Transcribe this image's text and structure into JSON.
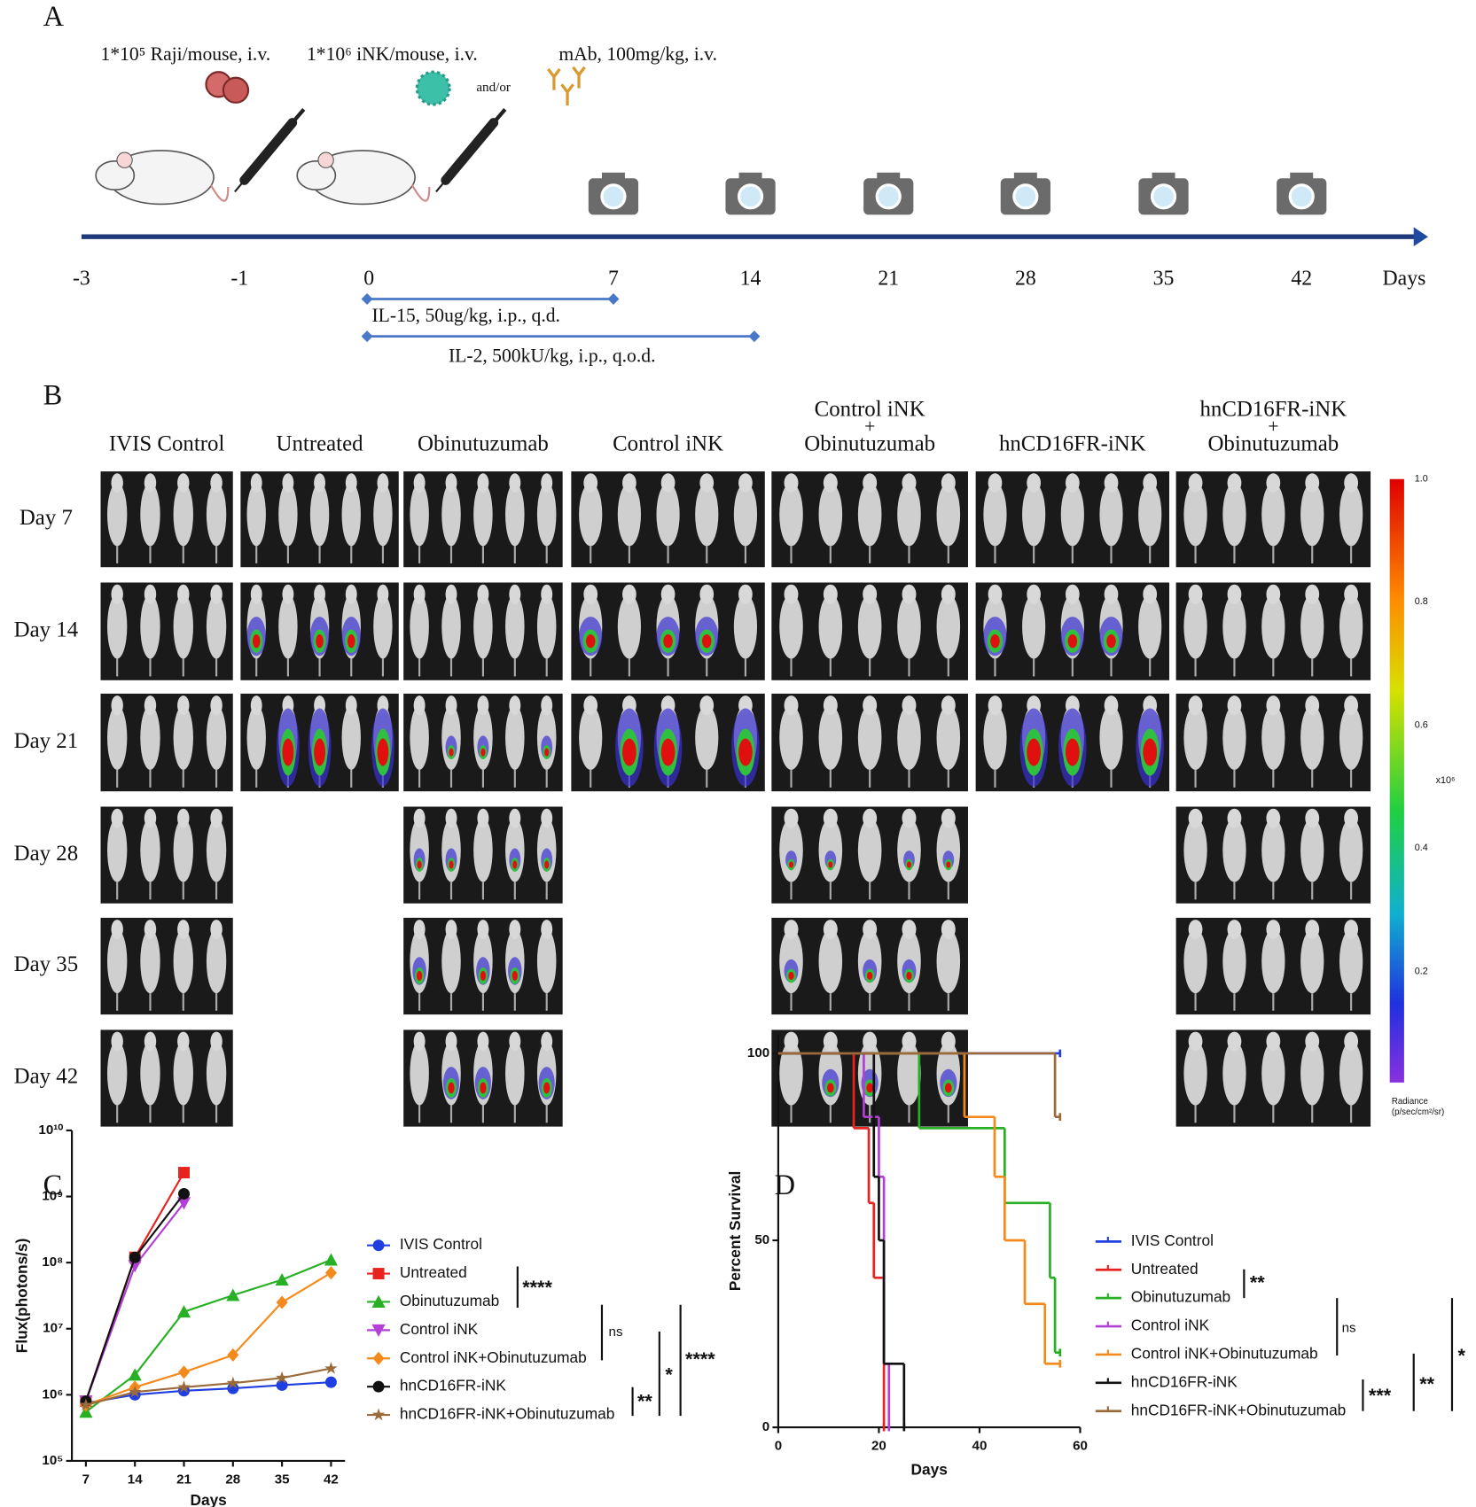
{
  "panel_a": {
    "label": "A",
    "injections": [
      "1*10⁵ Raji/mouse, i.v.",
      "1*10⁶  iNK/mouse, i.v.",
      "mAb, 100mg/kg, i.v."
    ],
    "and_or": "and/or",
    "timeline": {
      "ticks": [
        "-3",
        "-1",
        "0",
        "7",
        "14",
        "21",
        "28",
        "35",
        "42"
      ],
      "unit": "Days"
    },
    "treatments": [
      "IL-15, 50ug/kg, i.p., q.d.",
      "IL-2, 500kU/kg, i.p., q.o.d."
    ]
  },
  "panel_b": {
    "label": "B",
    "columns": [
      [
        "IVIS Control"
      ],
      [
        "Untreated"
      ],
      [
        "Obinutuzumab"
      ],
      [
        "Control iNK"
      ],
      [
        "Control iNK",
        "+",
        "Obinutuzumab"
      ],
      [
        "hnCD16FR-iNK"
      ],
      [
        "hnCD16FR-iNK",
        "+",
        "Obinutuzumab"
      ]
    ],
    "rows": [
      "Day 7",
      "Day 14",
      "Day 21",
      "Day 28",
      "Day 35",
      "Day 42"
    ],
    "colorbar": {
      "ticks": [
        "1.0",
        "0.8",
        "0.6",
        "0.4",
        "0.2"
      ],
      "scale": "x10⁶",
      "unit": [
        "Radiance",
        "(p/sec/cm²/sr)"
      ]
    }
  },
  "chart_data": [
    {
      "type": "line",
      "label": "C",
      "xlabel": "Days",
      "ylabel": "Flux(photons/s)",
      "log_y": true,
      "x": [
        7,
        14,
        21,
        28,
        35,
        42
      ],
      "xlim": [
        5,
        44
      ],
      "xticks": [
        7,
        14,
        21,
        28,
        35,
        42
      ],
      "ylim": [
        100000,
        10000000000
      ],
      "yticks": [
        {
          "value": 100000,
          "label": "10⁵"
        },
        {
          "value": 1000000,
          "label": "10⁶"
        },
        {
          "value": 10000000,
          "label": "10⁷"
        },
        {
          "value": 100000000,
          "label": "10⁸"
        },
        {
          "value": 1000000000,
          "label": "10⁹"
        },
        {
          "value": 10000000000,
          "label": "10¹⁰"
        }
      ],
      "series": [
        {
          "name": "IVIS Control",
          "color": "#1f3fe0",
          "marker": "circle",
          "values": [
            750000,
            1000000,
            1150000,
            1250000,
            1400000,
            1550000
          ]
        },
        {
          "name": "Untreated",
          "color": "#e8231f",
          "marker": "square",
          "values": [
            800000,
            120000000,
            2300000000,
            null,
            null,
            null
          ]
        },
        {
          "name": "Obinutuzumab",
          "color": "#27b024",
          "marker": "triangle-up",
          "values": [
            550000,
            2000000,
            18000000,
            32000000,
            55000000,
            110000000
          ]
        },
        {
          "name": "Control iNK",
          "color": "#b23fd6",
          "marker": "triangle-down",
          "values": [
            800000,
            90000000,
            800000000,
            null,
            null,
            null
          ]
        },
        {
          "name": "Control iNK+Obinutuzumab",
          "color": "#f48a1c",
          "marker": "diamond",
          "values": [
            700000,
            1300000,
            2200000,
            4000000,
            25000000,
            70000000
          ]
        },
        {
          "name": "hnCD16FR-iNK",
          "color": "#111111",
          "marker": "circle",
          "values": [
            800000,
            120000000,
            1100000000,
            null,
            null,
            null
          ]
        },
        {
          "name": "hnCD16FR-iNK+Obinutuzumab",
          "color": "#9a6a3a",
          "marker": "star",
          "values": [
            700000,
            1100000,
            1300000,
            1500000,
            1800000,
            2500000
          ]
        }
      ],
      "significance": [
        "****",
        "ns",
        "**",
        "*",
        "****"
      ]
    },
    {
      "type": "step",
      "label": "D",
      "xlabel": "Days",
      "ylabel": "Percent Survival",
      "xlim": [
        0,
        60
      ],
      "xticks": [
        0,
        20,
        40,
        60
      ],
      "ylim": [
        0,
        105
      ],
      "yticks": [
        0,
        50,
        100
      ],
      "series": [
        {
          "name": "IVIS Control",
          "color": "#1f3fe0",
          "x": [
            0,
            56
          ],
          "values": [
            100,
            100
          ]
        },
        {
          "name": "Untreated",
          "color": "#e8231f",
          "x": [
            0,
            15,
            18,
            19,
            21
          ],
          "values": [
            100,
            80,
            60,
            40,
            0
          ]
        },
        {
          "name": "Obinutuzumab",
          "color": "#27b024",
          "x": [
            0,
            28,
            45,
            54,
            55,
            56
          ],
          "values": [
            100,
            80,
            60,
            40,
            20,
            20
          ]
        },
        {
          "name": "Control iNK",
          "color": "#b23fd6",
          "x": [
            0,
            17,
            20,
            21,
            22
          ],
          "values": [
            100,
            83,
            67,
            17,
            0
          ]
        },
        {
          "name": "Control iNK+Obinutuzumab",
          "color": "#f48a1c",
          "x": [
            0,
            37,
            43,
            45,
            49,
            53,
            56
          ],
          "values": [
            100,
            83,
            67,
            50,
            33,
            17,
            17
          ]
        },
        {
          "name": "hnCD16FR-iNK",
          "color": "#111111",
          "x": [
            0,
            19,
            20,
            21,
            25
          ],
          "values": [
            100,
            67,
            50,
            17,
            0
          ]
        },
        {
          "name": "hnCD16FR-iNK+Obinutuzumab",
          "color": "#9a6a3a",
          "x": [
            0,
            55,
            56
          ],
          "values": [
            100,
            83,
            83
          ]
        }
      ],
      "significance": [
        "**",
        "ns",
        "***",
        "**",
        "*"
      ]
    }
  ]
}
